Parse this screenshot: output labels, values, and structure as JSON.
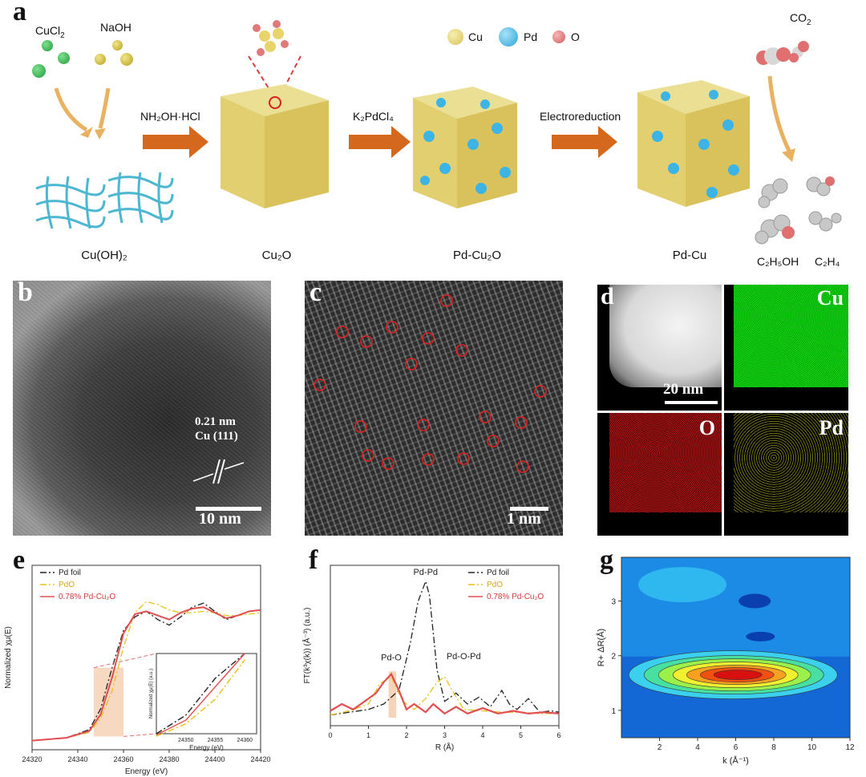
{
  "panel_a": {
    "letter": "a",
    "reagents": {
      "left": "CuCl",
      "left_sub": "2",
      "right": "NaOH"
    },
    "legend": {
      "cu": "Cu",
      "pd": "Pd",
      "o": "O"
    },
    "co2": "CO",
    "co2_sub": "2",
    "steps": {
      "s1": "NH₂OH·HCl",
      "s2": "K₂PdCl₄",
      "s3": "Electroreduction"
    },
    "names": {
      "cuoh2": "Cu(OH)₂",
      "cu2o": "Cu₂O",
      "pdcu2o": "Pd-Cu₂O",
      "pdcu": "Pd-Cu",
      "c2h5oh": "C₂H₅OH",
      "c2h4": "C₂H₄"
    },
    "colors": {
      "cu": "#e8d46a",
      "pd": "#3cb4e6",
      "o": "#e07a7a",
      "arrow": "#d4691e",
      "cucl2": "#1f9b3a",
      "naoh": "#c8b423"
    }
  },
  "panel_b": {
    "letter": "b",
    "d_spacing": "0.21 nm",
    "plane": "Cu (111)",
    "scale": "10 nm"
  },
  "panel_c": {
    "letter": "c",
    "scale": "1 nm"
  },
  "panel_d": {
    "letter": "d",
    "scale": "20 nm",
    "maps": {
      "cu": "Cu",
      "o": "O",
      "pd": "Pd"
    },
    "colors": {
      "cu": "#10d010",
      "o": "#b01010",
      "pd": "#8a8a20"
    }
  },
  "panel_e": {
    "letter": "e",
    "chart_data": {
      "type": "line",
      "xlabel": "Energy (eV)",
      "ylabel": "Normalized χμ(E)",
      "xlim": [
        24320,
        24420
      ],
      "xticks": [
        "24320",
        "24340",
        "24360",
        "24380",
        "24400",
        "24420"
      ],
      "series": [
        {
          "name": "Pd foil",
          "color": "#222222",
          "style": "dash-dot",
          "x": [
            24320,
            24335,
            24345,
            24350,
            24355,
            24360,
            24365,
            24370,
            24375,
            24380,
            24385,
            24390,
            24395,
            24400,
            24405,
            24410,
            24415,
            24420
          ],
          "y": [
            0.02,
            0.04,
            0.1,
            0.25,
            0.55,
            0.82,
            0.92,
            0.96,
            0.9,
            0.86,
            0.92,
            0.99,
            1.02,
            0.96,
            0.9,
            0.93,
            0.96,
            0.97
          ]
        },
        {
          "name": "PdO",
          "color": "#e6c21a",
          "style": "dash-dot",
          "x": [
            24320,
            24335,
            24345,
            24350,
            24355,
            24360,
            24365,
            24370,
            24375,
            24380,
            24385,
            24390,
            24395,
            24400,
            24405,
            24410,
            24415,
            24420
          ],
          "y": [
            0.02,
            0.04,
            0.08,
            0.18,
            0.38,
            0.7,
            0.95,
            1.03,
            1.01,
            0.97,
            0.95,
            0.95,
            0.96,
            0.95,
            0.93,
            0.93,
            0.94,
            0.95
          ]
        },
        {
          "name": "0.78% Pd-Cu₂O",
          "color": "#e05050",
          "style": "solid",
          "x": [
            24320,
            24335,
            24345,
            24350,
            24355,
            24360,
            24365,
            24370,
            24375,
            24380,
            24385,
            24390,
            24395,
            24400,
            24405,
            24410,
            24415,
            24420
          ],
          "y": [
            0.02,
            0.04,
            0.09,
            0.21,
            0.48,
            0.8,
            0.94,
            0.96,
            0.93,
            0.9,
            0.95,
            0.98,
            0.99,
            0.95,
            0.91,
            0.93,
            0.96,
            0.97
          ]
        }
      ],
      "inset": {
        "xticks": [
          "24350",
          "24355",
          "24360"
        ],
        "xlabel": "Energy (eV)",
        "ylabel": "Normalized χμ(E) (a.u.)"
      }
    }
  },
  "panel_f": {
    "letter": "f",
    "chart_data": {
      "type": "line",
      "xlabel": "R (Å)",
      "ylabel": "FT(k³χ(k)) (Å⁻³) (a.u.)",
      "xlim": [
        0,
        6
      ],
      "xticks": [
        "0",
        "1",
        "2",
        "3",
        "4",
        "5",
        "6"
      ],
      "annotations": [
        "Pd-Pd",
        "Pd-O",
        "Pd-O-Pd"
      ],
      "series": [
        {
          "name": "Pd foil",
          "color": "#222222",
          "style": "dash-dot",
          "x": [
            0,
            0.5,
            1.0,
            1.4,
            1.8,
            2.1,
            2.3,
            2.5,
            2.6,
            2.8,
            3.0,
            3.3,
            3.6,
            3.9,
            4.2,
            4.5,
            4.7,
            4.9,
            5.2,
            5.5,
            5.8,
            6.0
          ],
          "y": [
            0.02,
            0.04,
            0.06,
            0.1,
            0.2,
            0.55,
            0.85,
            1.0,
            0.9,
            0.35,
            0.12,
            0.18,
            0.1,
            0.15,
            0.08,
            0.2,
            0.1,
            0.06,
            0.14,
            0.04,
            0.05,
            0.04
          ]
        },
        {
          "name": "PdO",
          "color": "#e6c21a",
          "style": "dash-dot",
          "x": [
            0,
            0.5,
            1.0,
            1.3,
            1.6,
            1.9,
            2.2,
            2.5,
            2.8,
            3.0,
            3.2,
            3.5,
            4.0,
            4.5,
            5.0,
            5.5,
            6.0
          ],
          "y": [
            0.02,
            0.05,
            0.1,
            0.25,
            0.3,
            0.12,
            0.06,
            0.14,
            0.26,
            0.3,
            0.2,
            0.06,
            0.05,
            0.04,
            0.04,
            0.03,
            0.03
          ]
        },
        {
          "name": "0.78% Pd-Cu₂O",
          "color": "#e05050",
          "style": "solid",
          "x": [
            0,
            0.3,
            0.6,
            0.9,
            1.2,
            1.4,
            1.6,
            1.8,
            2.0,
            2.2,
            2.5,
            2.7,
            3.0,
            3.3,
            3.6,
            4.0,
            4.4,
            4.8,
            5.2,
            5.6,
            6.0
          ],
          "y": [
            0.05,
            0.1,
            0.06,
            0.12,
            0.18,
            0.26,
            0.32,
            0.2,
            0.06,
            0.1,
            0.04,
            0.1,
            0.03,
            0.08,
            0.03,
            0.07,
            0.03,
            0.05,
            0.03,
            0.04,
            0.03
          ]
        }
      ]
    }
  },
  "panel_g": {
    "letter": "g",
    "chart_data": {
      "type": "heatmap",
      "xlabel": "k (Å⁻¹)",
      "ylabel": "R+ ΔR(Å)",
      "xlim": [
        0,
        12
      ],
      "ylim": [
        0.5,
        3.8
      ],
      "xticks": [
        "2",
        "4",
        "6",
        "8",
        "10",
        "12"
      ],
      "yticks": [
        "1",
        "2",
        "3"
      ],
      "max_at": {
        "k": 6.2,
        "R": 1.65
      }
    }
  }
}
